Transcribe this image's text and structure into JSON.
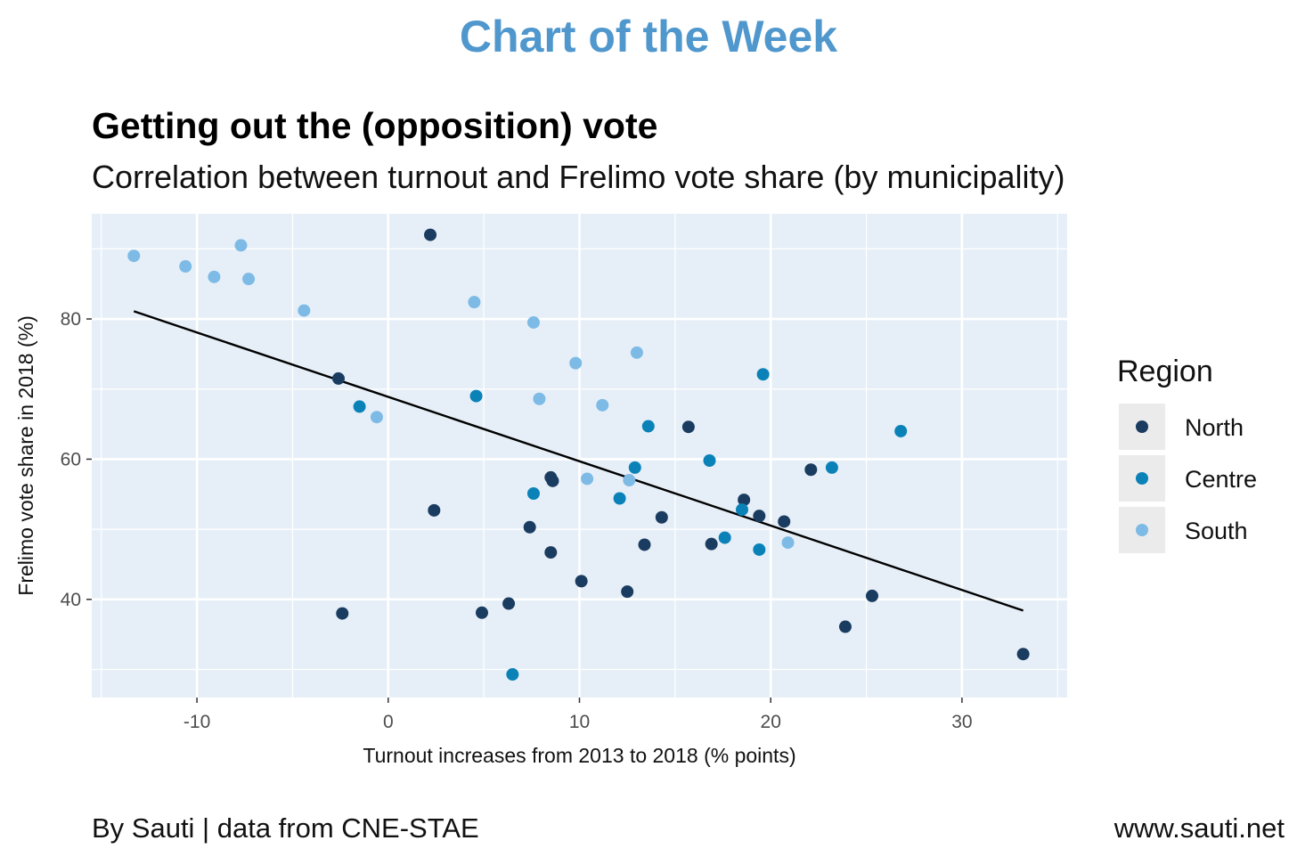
{
  "header": {
    "banner": "Chart of the Week"
  },
  "footer": {
    "credit": "By Sauti | data from CNE-STAE",
    "website": "www.sauti.net"
  },
  "colors": {
    "panel": "#e6eff8",
    "grid": "#ffffff",
    "north": "#1a3c60",
    "centre": "#0a82b8",
    "south": "#7dbbe6",
    "trend": "#000000"
  },
  "chart_data": {
    "type": "scatter",
    "title": "Getting out the (opposition) vote",
    "subtitle": "Correlation between turnout and Frelimo vote share (by municipality)",
    "xlabel": "Turnout increases from 2013 to 2018 (% points)",
    "ylabel": "Frelimo vote share in 2018 (%)",
    "xlim": [
      -15.5,
      35.5
    ],
    "ylim": [
      26,
      95
    ],
    "xticks": [
      -10,
      0,
      10,
      20,
      30
    ],
    "yticks": [
      40,
      60,
      80
    ],
    "legend": {
      "title": "Region",
      "position": "right"
    },
    "series": [
      {
        "name": "North",
        "color": "#1a3c60",
        "points": [
          [
            2.2,
            92.0
          ],
          [
            -2.6,
            71.5
          ],
          [
            2.4,
            52.7
          ],
          [
            -2.4,
            38.0
          ],
          [
            4.9,
            38.1
          ],
          [
            6.3,
            39.4
          ],
          [
            7.4,
            50.3
          ],
          [
            8.5,
            57.4
          ],
          [
            8.6,
            56.9
          ],
          [
            8.5,
            46.7
          ],
          [
            10.1,
            42.6
          ],
          [
            12.5,
            41.1
          ],
          [
            13.4,
            47.8
          ],
          [
            14.3,
            51.7
          ],
          [
            15.7,
            64.6
          ],
          [
            16.9,
            47.9
          ],
          [
            18.6,
            54.2
          ],
          [
            19.4,
            51.9
          ],
          [
            20.7,
            51.1
          ],
          [
            22.1,
            58.5
          ],
          [
            23.9,
            36.1
          ],
          [
            25.3,
            40.5
          ],
          [
            33.2,
            32.2
          ]
        ]
      },
      {
        "name": "Centre",
        "color": "#0a82b8",
        "points": [
          [
            -1.5,
            67.5
          ],
          [
            4.6,
            69.0
          ],
          [
            7.6,
            55.1
          ],
          [
            12.9,
            58.8
          ],
          [
            12.1,
            54.4
          ],
          [
            13.6,
            64.7
          ],
          [
            16.8,
            59.8
          ],
          [
            17.6,
            48.8
          ],
          [
            18.5,
            52.8
          ],
          [
            19.4,
            47.1
          ],
          [
            19.6,
            72.1
          ],
          [
            23.2,
            58.8
          ],
          [
            26.8,
            64.0
          ],
          [
            6.5,
            29.3
          ]
        ]
      },
      {
        "name": "South",
        "color": "#7dbbe6",
        "points": [
          [
            -13.3,
            89.0
          ],
          [
            -10.6,
            87.5
          ],
          [
            -9.1,
            86.0
          ],
          [
            -7.7,
            90.5
          ],
          [
            -7.3,
            85.7
          ],
          [
            -4.4,
            81.2
          ],
          [
            -0.6,
            66.0
          ],
          [
            4.5,
            82.4
          ],
          [
            7.6,
            79.5
          ],
          [
            7.9,
            68.6
          ],
          [
            9.8,
            73.7
          ],
          [
            10.4,
            57.2
          ],
          [
            11.2,
            67.7
          ],
          [
            12.6,
            57.0
          ],
          [
            13.0,
            75.2
          ],
          [
            20.9,
            48.1
          ]
        ]
      }
    ],
    "trendline": {
      "x": [
        -13.3,
        33.2
      ],
      "y": [
        81.1,
        38.4
      ]
    }
  }
}
